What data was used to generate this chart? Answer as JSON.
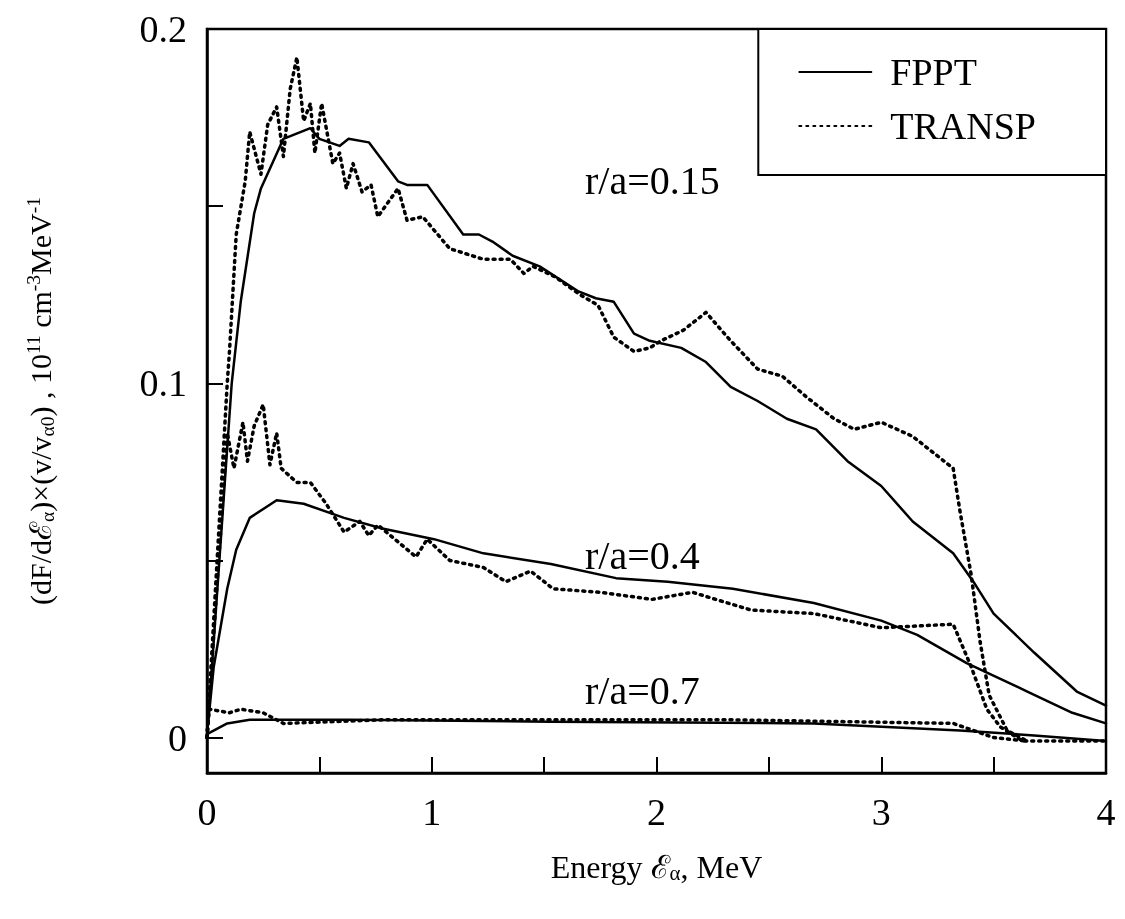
{
  "chart_data": {
    "type": "line",
    "xlabel": "Energy ℰ$_{α}$, MeV",
    "ylabel": "(dF/dℰ$_{α}$)×(v/v$_{α0}$) , 10$^{11}$ cm$^{-3}$MeV$^{-1}$",
    "xlim": [
      0,
      4
    ],
    "xticks": [
      0,
      {
        "value": 0.5,
        "label": null
      },
      1,
      {
        "value": 1.5,
        "label": null
      },
      2,
      {
        "value": 2.5,
        "label": null
      },
      3,
      {
        "value": 3.5,
        "label": null
      },
      4
    ],
    "ylim": [
      -0.01,
      0.2
    ],
    "yticks": [
      0,
      {
        "value": 0.05,
        "label": null
      },
      0.1,
      {
        "value": 0.15,
        "label": null
      },
      0.2
    ],
    "grid": false,
    "legend": "top right",
    "marker": "none",
    "annotations": [
      "r/a=0.15",
      "r/a=0.4",
      "r/a=0.7"
    ],
    "series": [
      {
        "name": "FPPT",
        "color": "#000000",
        "line_style": "solid",
        "x": [
          0,
          0.11,
          0.15,
          0.21,
          0.24,
          0.34,
          0.46,
          0.5,
          0.59,
          0.63,
          0.72,
          0.85,
          0.89,
          0.98,
          1.14,
          1.21,
          1.27,
          1.36,
          1.48,
          1.65,
          1.73,
          1.81,
          1.9,
          1.97,
          2.11,
          2.22,
          2.33,
          2.45,
          2.58,
          2.71,
          2.85,
          3.0,
          3.14,
          3.32,
          3.41,
          3.5,
          3.68,
          3.87,
          4.0
        ],
        "values": [
          0,
          0.1,
          0.123,
          0.148,
          0.155,
          0.169,
          0.172,
          0.169,
          0.167,
          0.169,
          0.168,
          0.157,
          0.156,
          0.156,
          0.142,
          0.142,
          0.14,
          0.136,
          0.133,
          0.126,
          0.124,
          0.123,
          0.114,
          0.112,
          0.11,
          0.106,
          0.099,
          0.095,
          0.09,
          0.087,
          0.078,
          0.071,
          0.061,
          0.052,
          0.044,
          0.035,
          0.024,
          0.013,
          0.009
        ]
      },
      {
        "name": "TRANSP",
        "color": "#000000",
        "line_style": "dotted",
        "x": [
          0,
          0.09,
          0.1,
          0.13,
          0.17,
          0.19,
          0.24,
          0.27,
          0.31,
          0.34,
          0.37,
          0.4,
          0.43,
          0.46,
          0.48,
          0.51,
          0.56,
          0.59,
          0.62,
          0.65,
          0.69,
          0.73,
          0.76,
          0.85,
          0.89,
          0.96,
          1.08,
          1.23,
          1.35,
          1.41,
          1.45,
          1.55,
          1.66,
          1.74,
          1.81,
          1.9,
          1.97,
          2.02,
          2.12,
          2.22,
          2.33,
          2.45,
          2.56,
          2.67,
          2.79,
          2.88,
          3.0,
          3.14,
          3.32,
          3.35,
          3.4,
          3.44,
          3.48,
          3.56,
          3.65
        ],
        "values": [
          0,
          0.1,
          0.109,
          0.142,
          0.157,
          0.171,
          0.159,
          0.173,
          0.178,
          0.164,
          0.183,
          0.192,
          0.174,
          0.179,
          0.165,
          0.179,
          0.162,
          0.165,
          0.155,
          0.162,
          0.154,
          0.156,
          0.147,
          0.155,
          0.146,
          0.147,
          0.138,
          0.135,
          0.135,
          0.131,
          0.133,
          0.13,
          0.125,
          0.122,
          0.113,
          0.109,
          0.11,
          0.112,
          0.115,
          0.12,
          0.112,
          0.104,
          0.102,
          0.096,
          0.09,
          0.087,
          0.089,
          0.085,
          0.076,
          0.064,
          0.046,
          0.027,
          0.012,
          0.002,
          -0.001
        ]
      },
      {
        "color": "#000000",
        "line_style": "solid",
        "x": [
          0,
          0.03,
          0.09,
          0.13,
          0.19,
          0.31,
          0.43,
          0.61,
          0.78,
          1.01,
          1.23,
          1.53,
          1.82,
          2.05,
          2.34,
          2.7,
          3.0,
          3.16,
          3.38,
          3.65,
          3.85,
          4.0
        ],
        "values": [
          0.001,
          0.02,
          0.042,
          0.053,
          0.062,
          0.067,
          0.066,
          0.062,
          0.059,
          0.056,
          0.052,
          0.049,
          0.045,
          0.044,
          0.042,
          0.038,
          0.033,
          0.029,
          0.021,
          0.013,
          0.007,
          0.004
        ]
      },
      {
        "color": "#000000",
        "line_style": "dotted",
        "x": [
          0,
          0.01,
          0.04,
          0.07,
          0.09,
          0.12,
          0.16,
          0.18,
          0.21,
          0.25,
          0.28,
          0.31,
          0.33,
          0.4,
          0.46,
          0.53,
          0.61,
          0.68,
          0.72,
          0.76,
          0.93,
          0.98,
          1.08,
          1.23,
          1.33,
          1.44,
          1.54,
          1.75,
          1.98,
          2.16,
          2.42,
          2.7,
          3.0,
          3.32,
          3.4,
          3.47,
          3.53,
          3.63,
          4.0
        ],
        "values": [
          0,
          0.01,
          0.039,
          0.067,
          0.086,
          0.076,
          0.089,
          0.078,
          0.088,
          0.094,
          0.077,
          0.086,
          0.076,
          0.072,
          0.072,
          0.066,
          0.058,
          0.061,
          0.057,
          0.06,
          0.051,
          0.056,
          0.05,
          0.048,
          0.044,
          0.047,
          0.042,
          0.041,
          0.039,
          0.041,
          0.036,
          0.035,
          0.031,
          0.032,
          0.02,
          0.008,
          0.003,
          -0.001,
          -0.001
        ]
      },
      {
        "color": "#000000",
        "line_style": "solid",
        "x": [
          0,
          0.09,
          0.19,
          0.64,
          1.53,
          2.7,
          3.35,
          3.68,
          4.0
        ],
        "values": [
          0.001,
          0.004,
          0.005,
          0.005,
          0.0045,
          0.004,
          0.002,
          0.0006,
          -0.001
        ]
      },
      {
        "color": "#000000",
        "line_style": "dotted",
        "x": [
          0,
          0.01,
          0.1,
          0.15,
          0.25,
          0.34,
          0.78,
          2.34,
          3.32,
          3.5,
          3.65
        ],
        "values": [
          0,
          0.008,
          0.007,
          0.008,
          0.007,
          0.004,
          0.005,
          0.005,
          0.004,
          0,
          -0.001
        ]
      }
    ]
  }
}
